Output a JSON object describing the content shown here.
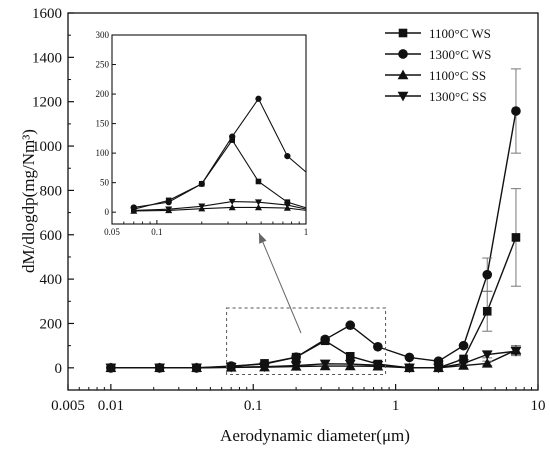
{
  "chart_data": {
    "type": "line",
    "title": "",
    "xlabel": "Aerodynamic diameter(μm)",
    "ylabel": "dM/dlogdp(mg/Nm³)",
    "x_scale": "log",
    "xlim": [
      0.005,
      10
    ],
    "ylim": [
      -100,
      1600
    ],
    "x_tick_labels": [
      "0.005",
      "0.01",
      "0.1",
      "1",
      "10"
    ],
    "y_tick_labels": [
      "0",
      "200",
      "400",
      "600",
      "800",
      "1000",
      "1200",
      "1400",
      "1600"
    ],
    "legend_position": "top-right",
    "series": [
      {
        "name": "1100°C WS",
        "marker": "square",
        "x": [
          0.01,
          0.022,
          0.04,
          0.07,
          0.12,
          0.2,
          0.32,
          0.48,
          0.75,
          1.25,
          2.0,
          3.0,
          4.4,
          7.0
        ],
        "y": [
          0,
          0,
          0,
          5,
          20,
          48,
          122,
          52,
          17,
          0,
          0,
          40,
          255,
          588
        ],
        "err": [
          0,
          0,
          0,
          0,
          0,
          0,
          0,
          0,
          0,
          0,
          0,
          0,
          90,
          220
        ]
      },
      {
        "name": "1300°C WS",
        "marker": "circle",
        "x": [
          0.01,
          0.022,
          0.04,
          0.07,
          0.12,
          0.2,
          0.32,
          0.48,
          0.75,
          1.25,
          2.0,
          3.0,
          4.4,
          7.0
        ],
        "y": [
          0,
          0,
          0,
          8,
          17,
          48,
          128,
          192,
          95,
          47,
          30,
          100,
          420,
          1158
        ],
        "err": [
          0,
          0,
          0,
          0,
          0,
          0,
          0,
          0,
          0,
          0,
          0,
          0,
          75,
          190
        ]
      },
      {
        "name": "1100°C SS",
        "marker": "triangle-up",
        "x": [
          0.01,
          0.022,
          0.04,
          0.07,
          0.12,
          0.2,
          0.32,
          0.48,
          0.75,
          1.25,
          2.0,
          3.0,
          4.4,
          7.0
        ],
        "y": [
          0,
          0,
          0,
          2,
          3,
          6,
          8,
          8,
          7,
          0,
          0,
          10,
          20,
          80
        ],
        "err": [
          0,
          0,
          0,
          0,
          0,
          0,
          0,
          0,
          0,
          0,
          0,
          0,
          10,
          20
        ]
      },
      {
        "name": "1300°C SS",
        "marker": "triangle-down",
        "x": [
          0.01,
          0.022,
          0.04,
          0.07,
          0.12,
          0.2,
          0.32,
          0.48,
          0.75,
          1.25,
          2.0,
          3.0,
          4.4,
          7.0
        ],
        "y": [
          0,
          0,
          0,
          3,
          5,
          10,
          18,
          17,
          12,
          0,
          0,
          20,
          60,
          75
        ],
        "err": [
          0,
          0,
          0,
          0,
          0,
          0,
          0,
          0,
          0,
          0,
          0,
          0,
          15,
          20
        ]
      }
    ],
    "inset": {
      "type": "line",
      "x_scale": "log",
      "xlim": [
        0.05,
        1
      ],
      "ylim": [
        -20,
        300
      ],
      "x_tick_labels": [
        "0.05",
        "0.1",
        "1"
      ],
      "y_tick_labels": [
        "0",
        "50",
        "100",
        "150",
        "200",
        "250",
        "300"
      ]
    },
    "zoom_region": {
      "x_range": [
        0.065,
        0.85
      ],
      "y_range": [
        -30,
        270
      ]
    }
  }
}
